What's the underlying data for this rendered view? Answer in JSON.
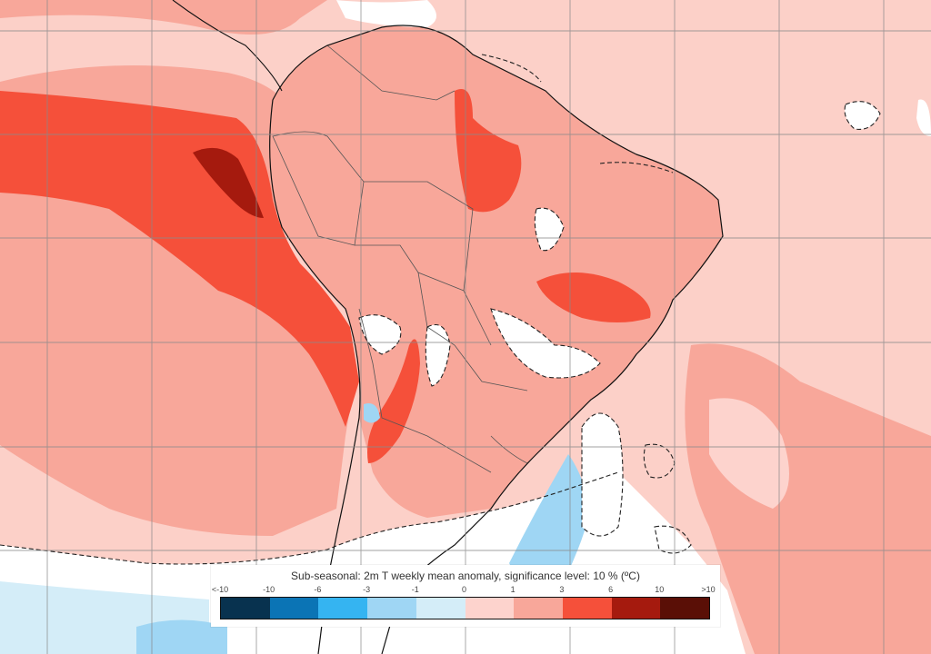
{
  "legend": {
    "title": "Sub-seasonal: 2m T weekly mean anomaly, significance level: 10 % (ºC)",
    "ticks": [
      "<-10",
      "-10",
      "-6",
      "-3",
      "-1",
      "0",
      "1",
      "3",
      "6",
      "10",
      ">10"
    ],
    "colors": [
      "#08324f",
      "#0b74b5",
      "#35b4f1",
      "#9fd6f4",
      "#d4edf8",
      "#fdd3cd",
      "#f8a79a",
      "#f5503a",
      "#a51a0e",
      "#5a0f06"
    ]
  },
  "map_colors": {
    "ocean_base": "#fcd0c8",
    "anomaly_1_3": "#f8a79a",
    "anomaly_3_6": "#f5503a",
    "anomaly_6_10": "#a51a0e",
    "anomaly_0_1": "#fdd3cd",
    "not_significant": "#ffffff",
    "cold_1": "#d4edf8",
    "cold_3": "#9fd6f4",
    "cold_6": "#35b4f1",
    "coastline": "#111111",
    "grid": "#8a8a8a"
  }
}
